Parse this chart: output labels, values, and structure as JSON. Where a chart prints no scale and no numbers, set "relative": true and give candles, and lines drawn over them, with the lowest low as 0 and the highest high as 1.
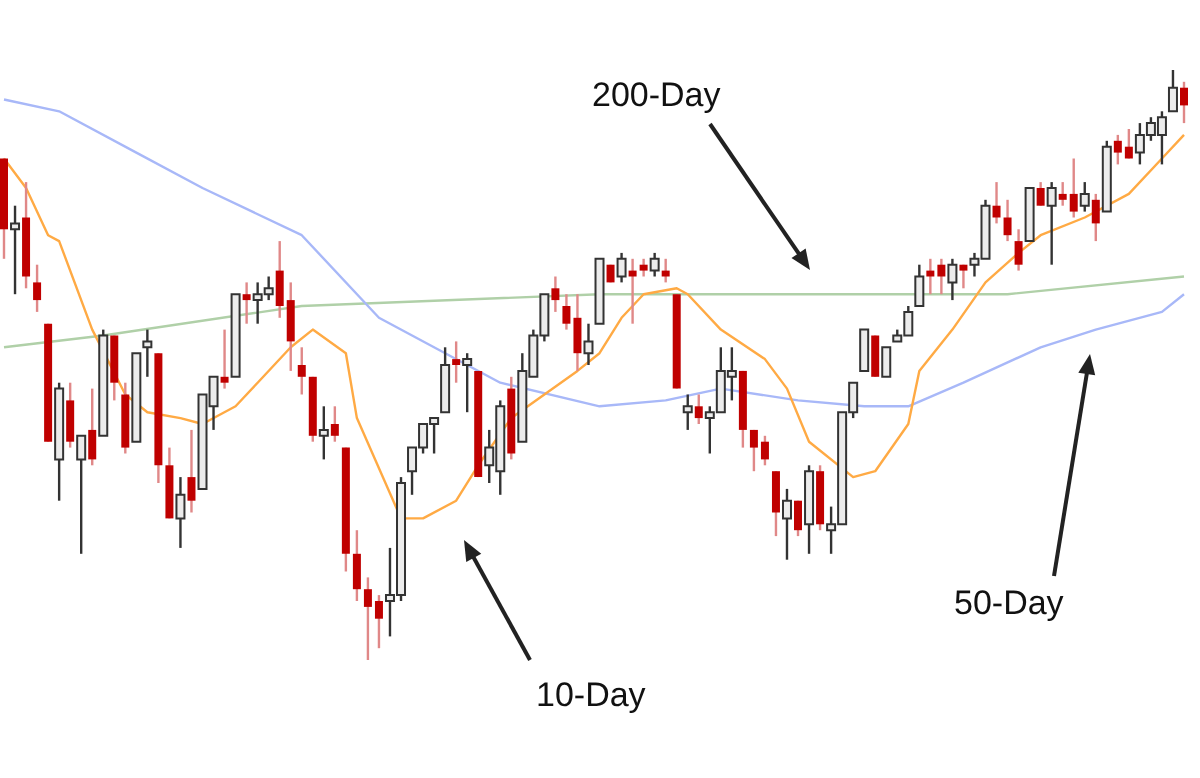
{
  "chart_data": {
    "type": "candlestick",
    "relative": true,
    "annotations": [
      "10-Day",
      "50-Day",
      "200-Day"
    ],
    "tick_labels": false,
    "legend": false,
    "categories": [
      null,
      null,
      null,
      null,
      null,
      null,
      null,
      null,
      null,
      null,
      null,
      null,
      null,
      null,
      null,
      null,
      null,
      null,
      null,
      null,
      null,
      null,
      null,
      null,
      null,
      null,
      null,
      null,
      null,
      null,
      null,
      null,
      null,
      null,
      null,
      null,
      null,
      null,
      null,
      null,
      null,
      null,
      null,
      null,
      null,
      null,
      null,
      null,
      null,
      null,
      null,
      null,
      null,
      null,
      null,
      null,
      null,
      null,
      null,
      null,
      null,
      null,
      null,
      null,
      null,
      null,
      null,
      null,
      null,
      null,
      null,
      null,
      null,
      null,
      null,
      null,
      null,
      null,
      null,
      null,
      null,
      null,
      null,
      null,
      null,
      null,
      null,
      null,
      null,
      null,
      null,
      null,
      null,
      null,
      null,
      null,
      null,
      null,
      null,
      null,
      null,
      null,
      null,
      null,
      null,
      null,
      null,
      null
    ],
    "ohlc": [
      [
        0.85,
        0.85,
        0.68,
        0.73
      ],
      [
        0.73,
        0.77,
        0.62,
        0.74
      ],
      [
        0.75,
        0.81,
        0.63,
        0.65
      ],
      [
        0.64,
        0.67,
        0.59,
        0.61
      ],
      [
        0.57,
        0.57,
        0.37,
        0.37
      ],
      [
        0.34,
        0.47,
        0.27,
        0.46
      ],
      [
        0.44,
        0.47,
        0.36,
        0.37
      ],
      [
        0.34,
        0.38,
        0.18,
        0.38
      ],
      [
        0.39,
        0.46,
        0.33,
        0.34
      ],
      [
        0.38,
        0.56,
        0.38,
        0.55
      ],
      [
        0.55,
        0.55,
        0.44,
        0.47
      ],
      [
        0.45,
        0.47,
        0.35,
        0.36
      ],
      [
        0.37,
        0.52,
        0.37,
        0.52
      ],
      [
        0.53,
        0.56,
        0.48,
        0.54
      ],
      [
        0.52,
        0.52,
        0.3,
        0.33
      ],
      [
        0.33,
        0.36,
        0.24,
        0.24
      ],
      [
        0.24,
        0.31,
        0.19,
        0.28
      ],
      [
        0.31,
        0.39,
        0.25,
        0.27
      ],
      [
        0.29,
        0.45,
        0.29,
        0.45
      ],
      [
        0.43,
        0.48,
        0.39,
        0.48
      ],
      [
        0.48,
        0.56,
        0.46,
        0.47
      ],
      [
        0.48,
        0.62,
        0.48,
        0.62
      ],
      [
        0.62,
        0.64,
        0.57,
        0.61
      ],
      [
        0.61,
        0.64,
        0.57,
        0.62
      ],
      [
        0.62,
        0.65,
        0.61,
        0.63
      ],
      [
        0.66,
        0.71,
        0.58,
        0.6
      ],
      [
        0.61,
        0.64,
        0.49,
        0.54
      ],
      [
        0.5,
        0.53,
        0.45,
        0.48
      ],
      [
        0.48,
        0.48,
        0.37,
        0.38
      ],
      [
        0.38,
        0.43,
        0.34,
        0.39
      ],
      [
        0.4,
        0.43,
        0.37,
        0.38
      ],
      [
        0.36,
        0.36,
        0.15,
        0.18
      ],
      [
        0.18,
        0.22,
        0.1,
        0.12
      ],
      [
        0.12,
        0.14,
        0,
        0.09
      ],
      [
        0.1,
        0.11,
        0.02,
        0.07
      ],
      [
        0.1,
        0.19,
        0.04,
        0.11
      ],
      [
        0.11,
        0.31,
        0.1,
        0.3
      ],
      [
        0.32,
        0.36,
        0.28,
        0.36
      ],
      [
        0.36,
        0.4,
        0.35,
        0.4
      ],
      [
        0.4,
        0.41,
        0.35,
        0.41
      ],
      [
        0.42,
        0.53,
        0.42,
        0.5
      ],
      [
        0.51,
        0.54,
        0.47,
        0.5
      ],
      [
        0.5,
        0.52,
        0.42,
        0.51
      ],
      [
        0.49,
        0.49,
        0.31,
        0.31
      ],
      [
        0.33,
        0.39,
        0.3,
        0.36
      ],
      [
        0.32,
        0.44,
        0.28,
        0.43
      ],
      [
        0.46,
        0.48,
        0.34,
        0.35
      ],
      [
        0.37,
        0.52,
        0.37,
        0.49
      ],
      [
        0.48,
        0.56,
        0.48,
        0.55
      ],
      [
        0.55,
        0.62,
        0.54,
        0.62
      ],
      [
        0.63,
        0.65,
        0.59,
        0.61
      ],
      [
        0.6,
        0.62,
        0.56,
        0.57
      ],
      [
        0.58,
        0.62,
        0.49,
        0.52
      ],
      [
        0.52,
        0.57,
        0.5,
        0.54
      ],
      [
        0.57,
        0.68,
        0.57,
        0.68
      ],
      [
        0.67,
        0.67,
        0.64,
        0.64
      ],
      [
        0.65,
        0.69,
        0.64,
        0.68
      ],
      [
        0.66,
        0.68,
        0.57,
        0.65
      ],
      [
        0.67,
        0.68,
        0.65,
        0.66
      ],
      [
        0.66,
        0.69,
        0.65,
        0.68
      ],
      [
        0.66,
        0.68,
        0.64,
        0.65
      ],
      [
        0.62,
        0.62,
        0.46,
        0.46
      ],
      [
        0.42,
        0.45,
        0.39,
        0.43
      ],
      [
        0.43,
        0.45,
        0.4,
        0.41
      ],
      [
        0.41,
        0.43,
        0.35,
        0.42
      ],
      [
        0.42,
        0.53,
        0.42,
        0.49
      ],
      [
        0.48,
        0.53,
        0.44,
        0.49
      ],
      [
        0.49,
        0.49,
        0.36,
        0.39
      ],
      [
        0.39,
        0.39,
        0.32,
        0.36
      ],
      [
        0.37,
        0.38,
        0.33,
        0.34
      ],
      [
        0.32,
        0.32,
        0.21,
        0.25
      ],
      [
        0.24,
        0.29,
        0.17,
        0.27
      ],
      [
        0.27,
        0.27,
        0.21,
        0.22
      ],
      [
        0.23,
        0.33,
        0.18,
        0.32
      ],
      [
        0.32,
        0.33,
        0.22,
        0.23
      ],
      [
        0.22,
        0.26,
        0.18,
        0.23
      ],
      [
        0.23,
        0.42,
        0.23,
        0.42
      ],
      [
        0.42,
        0.47,
        0.41,
        0.47
      ],
      [
        0.49,
        0.56,
        0.49,
        0.56
      ],
      [
        0.55,
        0.55,
        0.48,
        0.48
      ],
      [
        0.48,
        0.53,
        0.48,
        0.53
      ],
      [
        0.54,
        0.56,
        0.54,
        0.55
      ],
      [
        0.55,
        0.6,
        0.55,
        0.59
      ],
      [
        0.6,
        0.67,
        0.6,
        0.65
      ],
      [
        0.66,
        0.68,
        0.62,
        0.65
      ],
      [
        0.67,
        0.68,
        0.62,
        0.65
      ],
      [
        0.64,
        0.68,
        0.61,
        0.67
      ],
      [
        0.67,
        0.67,
        0.63,
        0.66
      ],
      [
        0.67,
        0.69,
        0.65,
        0.68
      ],
      [
        0.68,
        0.78,
        0.68,
        0.77
      ],
      [
        0.77,
        0.81,
        0.74,
        0.75
      ],
      [
        0.75,
        0.78,
        0.71,
        0.72
      ],
      [
        0.71,
        0.73,
        0.66,
        0.67
      ],
      [
        0.71,
        0.8,
        0.71,
        0.8
      ],
      [
        0.8,
        0.81,
        0.77,
        0.77
      ],
      [
        0.77,
        0.81,
        0.67,
        0.8
      ],
      [
        0.79,
        0.81,
        0.77,
        0.78
      ],
      [
        0.79,
        0.85,
        0.75,
        0.76
      ],
      [
        0.77,
        0.81,
        0.76,
        0.79
      ],
      [
        0.78,
        0.79,
        0.71,
        0.74
      ],
      [
        0.76,
        0.88,
        0.76,
        0.87
      ],
      [
        0.88,
        0.89,
        0.84,
        0.86
      ],
      [
        0.87,
        0.9,
        0.85,
        0.85
      ],
      [
        0.86,
        0.91,
        0.84,
        0.89
      ],
      [
        0.89,
        0.92,
        0.88,
        0.91
      ],
      [
        0.89,
        0.93,
        0.84,
        0.92
      ],
      [
        0.93,
        1.0,
        0.93,
        0.97
      ],
      [
        0.97,
        0.98,
        0.91,
        0.94
      ]
    ],
    "series": [
      {
        "type": "line",
        "color": "#ffaa44",
        "values": [
          0.85,
          null,
          0.8,
          null,
          0.72,
          0.71,
          null,
          null,
          0.56,
          null,
          null,
          0.45,
          null,
          0.42,
          null,
          null,
          0.41,
          null,
          0.4,
          null,
          null,
          0.43,
          null,
          0.47,
          null,
          null,
          0.53,
          null,
          0.56,
          null,
          null,
          0.52,
          0.41,
          null,
          null,
          null,
          0.24,
          null,
          0.24,
          null,
          null,
          0.27,
          null,
          0.33,
          null,
          null,
          0.41,
          null,
          null,
          0.45,
          null,
          null,
          0.49,
          null,
          0.52,
          null,
          0.58,
          null,
          0.62,
          null,
          null,
          0.63,
          0.62,
          null,
          null,
          0.56,
          null,
          null,
          null,
          0.51,
          null,
          0.46,
          null,
          0.37,
          null,
          null,
          null,
          0.31,
          null,
          0.32,
          null,
          null,
          0.4,
          0.49,
          null,
          null,
          0.56,
          null,
          null,
          0.64,
          null,
          null,
          0.69,
          null,
          0.72,
          null,
          null,
          null,
          0.75,
          null,
          null,
          null,
          0.79,
          null,
          null,
          0.85,
          null,
          0.89
        ]
      },
      {
        "type": "line",
        "color": "#a8b8f8",
        "values": [
          0.95,
          null,
          null,
          null,
          null,
          0.93,
          null,
          null,
          null,
          null,
          null,
          null,
          0.86,
          null,
          null,
          null,
          null,
          null,
          0.8,
          null,
          null,
          null,
          null,
          null,
          null,
          null,
          null,
          0.72,
          null,
          null,
          null,
          null,
          null,
          null,
          0.58,
          null,
          null,
          null,
          null,
          null,
          null,
          null,
          null,
          null,
          null,
          0.47,
          null,
          null,
          null,
          null,
          null,
          null,
          null,
          null,
          0.43,
          null,
          null,
          null,
          null,
          null,
          0.44,
          null,
          null,
          null,
          null,
          0.46,
          null,
          null,
          null,
          null,
          null,
          null,
          0.44,
          null,
          null,
          null,
          null,
          null,
          0.43,
          null,
          null,
          null,
          0.43,
          null,
          null,
          null,
          null,
          0.47,
          null,
          null,
          null,
          null,
          null,
          null,
          0.53,
          null,
          null,
          null,
          null,
          0.56,
          null,
          null,
          null,
          null,
          null,
          0.59,
          null,
          0.62
        ]
      },
      {
        "type": "line",
        "color": "#b0d0a8",
        "values": [
          0.53,
          null,
          null,
          null,
          null,
          null,
          null,
          null,
          null,
          0.55,
          null,
          null,
          null,
          null,
          null,
          null,
          null,
          null,
          null,
          null,
          null,
          null,
          null,
          null,
          null,
          null,
          null,
          0.6,
          null,
          null,
          null,
          null,
          null,
          null,
          null,
          null,
          null,
          null,
          null,
          null,
          null,
          null,
          null,
          null,
          null,
          null,
          null,
          null,
          null,
          null,
          null,
          null,
          null,
          null,
          0.62,
          null,
          null,
          null,
          null,
          null,
          null,
          null,
          null,
          null,
          null,
          null,
          null,
          null,
          null,
          null,
          null,
          null,
          null,
          null,
          null,
          null,
          null,
          null,
          null,
          null,
          null,
          null,
          0.62,
          null,
          null,
          null,
          null,
          null,
          null,
          null,
          null,
          0.62,
          null,
          null,
          null,
          null,
          null,
          null,
          null,
          null,
          null,
          null,
          null,
          null,
          null,
          null,
          null,
          0.65
        ]
      }
    ]
  }
}
